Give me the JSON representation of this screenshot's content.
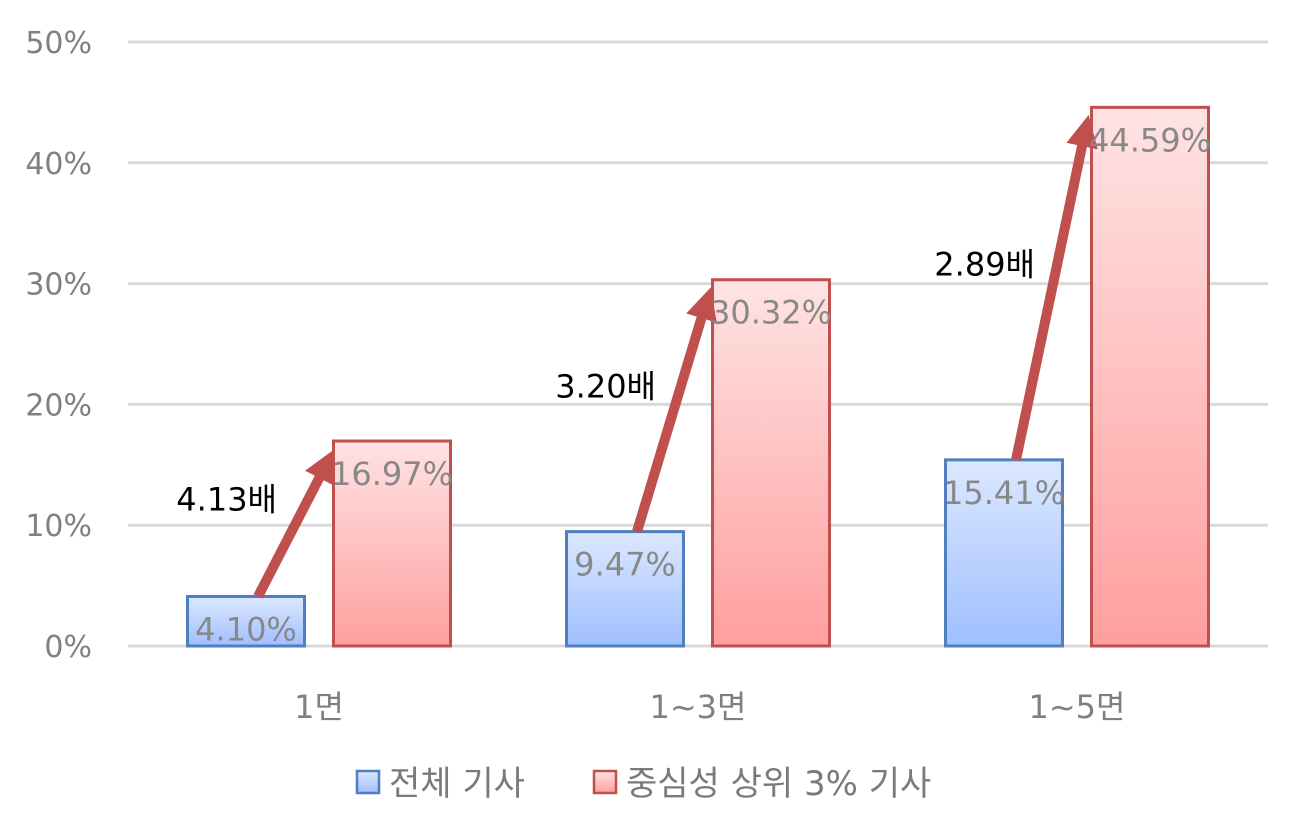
{
  "chart_data": {
    "type": "bar",
    "title": "",
    "xlabel": "",
    "ylabel": "",
    "categories": [
      "1면",
      "1~3면",
      "1~5면"
    ],
    "ylim": [
      0,
      50
    ],
    "yticks": [
      "0%",
      "10%",
      "20%",
      "30%",
      "40%",
      "50%"
    ],
    "grid": true,
    "legend_position": "bottom",
    "series": [
      {
        "name": "전체 기사",
        "values": [
          4.1,
          9.47,
          15.41
        ],
        "labels": [
          "4.10%",
          "9.47%",
          "15.41%"
        ],
        "color_top": "#dce8ff",
        "color_bottom": "#9fbfff",
        "stroke": "#4f7fbf"
      },
      {
        "name": "중심성 상위 3% 기사",
        "values": [
          16.97,
          30.32,
          44.59
        ],
        "labels": [
          "16.97%",
          "30.32%",
          "44.59%"
        ],
        "color_top": "#ffe3e3",
        "color_bottom": "#ff9f9f",
        "stroke": "#c0504d"
      }
    ],
    "annotations": {
      "arrow_color": "#c0504d",
      "ratios": [
        "4.13배",
        "3.20배",
        "2.89배"
      ]
    }
  }
}
